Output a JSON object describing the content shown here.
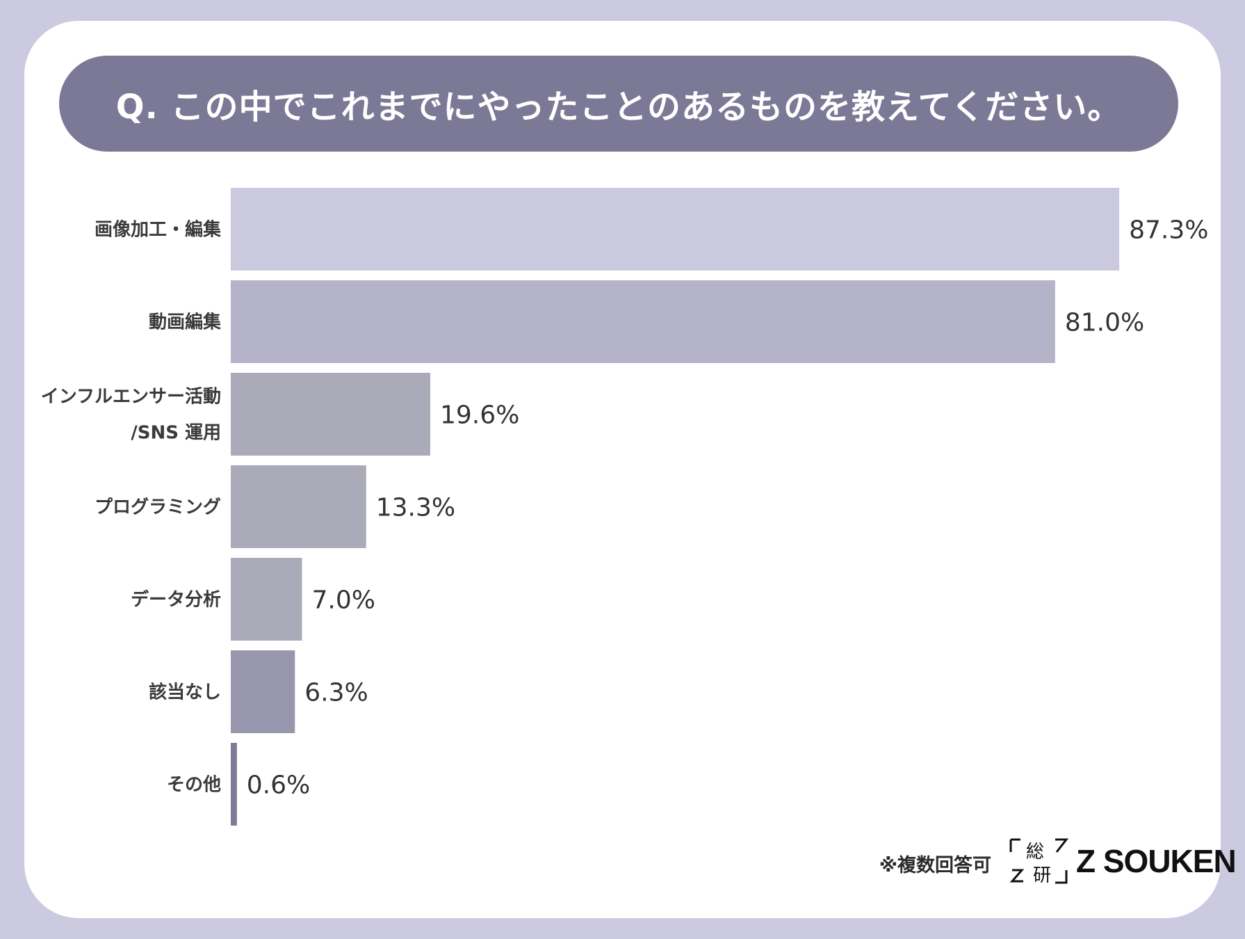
{
  "title": "Q. この中でこれまでにやったことのあるものを教えてください。",
  "note": "※複数回答可",
  "brand": {
    "logo_text": "Z SOUKEN",
    "logo_mark_chars": [
      "総",
      "研"
    ]
  },
  "colors": {
    "background": "#cccae0",
    "banner": "#7c7996"
  },
  "chart_data": {
    "type": "bar",
    "orientation": "horizontal",
    "title": "Q. この中でこれまでにやったことのあるものを教えてください。",
    "categories": [
      [
        "画像加工・編集"
      ],
      [
        "動画編集"
      ],
      [
        "インフルエンサー活動",
        "/SNS 運用"
      ],
      [
        "プログラミング"
      ],
      [
        "データ分析"
      ],
      [
        "該当なし"
      ],
      [
        "その他"
      ]
    ],
    "values": [
      87.3,
      81.0,
      19.6,
      13.3,
      7.0,
      6.3,
      0.6
    ],
    "value_labels": [
      "87.3%",
      "81.0%",
      "19.6%",
      "13.3%",
      "7.0%",
      "6.3%",
      "0.6%"
    ],
    "bar_colors": [
      "#cbc9de",
      "#b5b3c9",
      "#abaab9",
      "#abaab9",
      "#abaab9",
      "#9896ac",
      "#7e7a98"
    ],
    "unit": "%",
    "xlabel": "",
    "ylabel": "",
    "xlim": [
      0,
      100
    ]
  }
}
